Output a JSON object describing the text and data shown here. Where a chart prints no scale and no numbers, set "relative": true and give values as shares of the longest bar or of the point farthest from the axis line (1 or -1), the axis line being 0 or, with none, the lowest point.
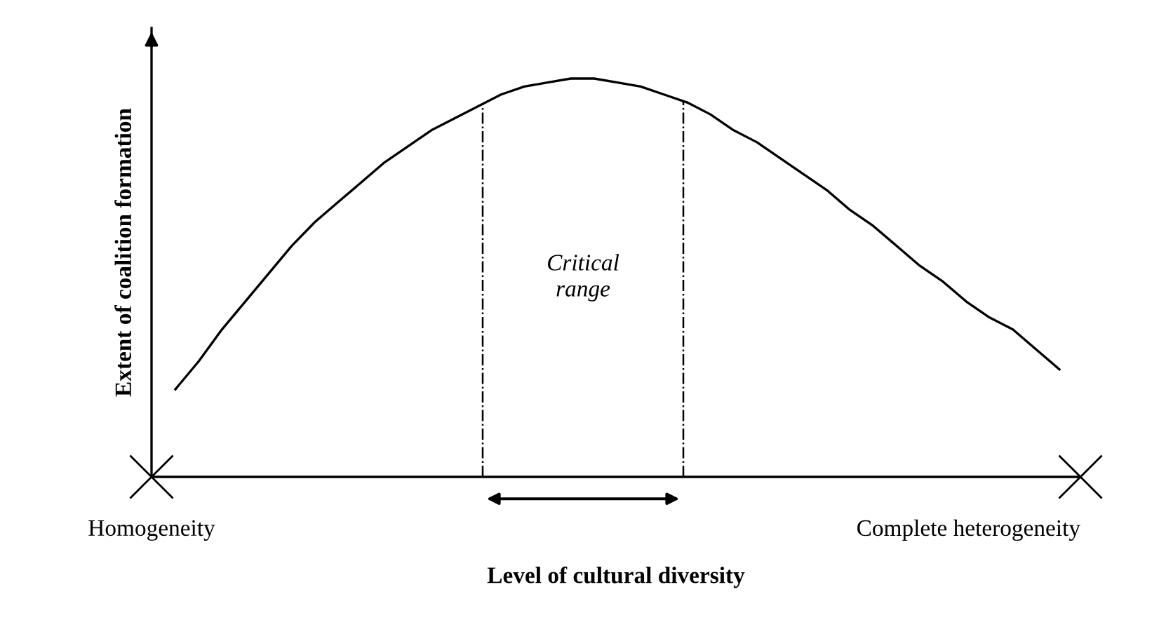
{
  "chart_data": {
    "type": "line",
    "relative": true,
    "xlabel": "Level of cultural diversity",
    "ylabel": "Extent of coalition formation",
    "categories": [
      null,
      null,
      null,
      null,
      null,
      null,
      null,
      null,
      null,
      null,
      null,
      null,
      null,
      null,
      null,
      null,
      null,
      null,
      null,
      null,
      null,
      null,
      null,
      null,
      null,
      null,
      null,
      null,
      null,
      null,
      null,
      null,
      null,
      null,
      null,
      null,
      null,
      null,
      null
    ],
    "series": [
      {
        "color": "#000000",
        "values": [
          0.22,
          0.29,
          0.37,
          0.44,
          0.51,
          0.58,
          0.64,
          0.69,
          0.74,
          0.79,
          0.83,
          0.87,
          0.9,
          0.93,
          0.96,
          0.98,
          0.99,
          1.0,
          1.0,
          0.99,
          0.98,
          0.96,
          0.94,
          0.91,
          0.87,
          0.84,
          0.8,
          0.76,
          0.72,
          0.67,
          0.63,
          0.58,
          0.53,
          0.49,
          0.44,
          0.4,
          0.37,
          0.32,
          0.27
        ]
      }
    ],
    "annotations": [
      "Homogeneity",
      "Complete heterogeneity",
      "Critical\nrange"
    ],
    "grid": false,
    "marker": "none",
    "line_style": "solid"
  }
}
